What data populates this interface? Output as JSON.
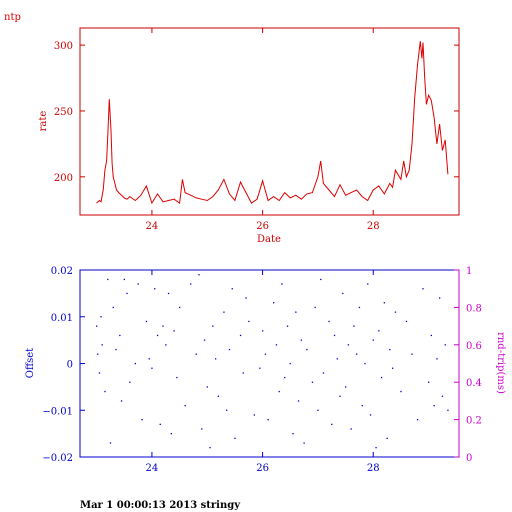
{
  "page_title": "ntp",
  "footer_text": "Mar  1 00:00:13 2013 stringy",
  "colors": {
    "rate": "#dd0000",
    "offset": "#0000cc",
    "rtt": "#cc00cc",
    "axes_top": "#cc0000",
    "axes_bottom": "#0000cc"
  },
  "chart_data": [
    {
      "type": "line",
      "title": "",
      "xlabel": "Date",
      "ylabel": "rate",
      "xlim": [
        22.7,
        29.55
      ],
      "ylim": [
        171,
        313
      ],
      "x_ticks": [
        24,
        26,
        28
      ],
      "x_tick_labels": [
        "24",
        "26",
        "28"
      ],
      "y_ticks": [
        200,
        250,
        300
      ],
      "y_tick_labels": [
        "200",
        "250",
        "300"
      ],
      "grid": false,
      "series": [
        {
          "x": [
            23.0,
            23.05,
            23.08,
            23.12,
            23.15,
            23.18,
            23.2,
            23.23,
            23.26,
            23.28,
            23.3,
            23.33,
            23.36,
            23.4,
            23.45,
            23.5,
            23.55,
            23.6,
            23.7,
            23.8,
            23.9,
            24.0,
            24.1,
            24.2,
            24.3,
            24.4,
            24.5,
            24.55,
            24.6,
            24.7,
            24.8,
            24.9,
            25.0,
            25.1,
            25.2,
            25.3,
            25.4,
            25.5,
            25.6,
            25.7,
            25.8,
            25.9,
            26.0,
            26.1,
            26.2,
            26.3,
            26.4,
            26.5,
            26.6,
            26.7,
            26.8,
            26.9,
            27.0,
            27.05,
            27.1,
            27.2,
            27.3,
            27.4,
            27.5,
            27.6,
            27.7,
            27.8,
            27.9,
            28.0,
            28.1,
            28.2,
            28.3,
            28.35,
            28.4,
            28.5,
            28.55,
            28.6,
            28.65,
            28.7,
            28.75,
            28.8,
            28.85,
            28.88,
            28.9,
            28.93,
            28.96,
            29.0,
            29.05,
            29.1,
            29.15,
            29.2,
            29.25,
            29.3,
            29.35
          ],
          "y": [
            180,
            182,
            181,
            190,
            205,
            212,
            230,
            259,
            235,
            210,
            200,
            195,
            190,
            188,
            186,
            184,
            183,
            185,
            182,
            186,
            193,
            180,
            187,
            181,
            182,
            183,
            180,
            198,
            188,
            186,
            184,
            183,
            182,
            185,
            190,
            198,
            187,
            182,
            196,
            188,
            180,
            183,
            197,
            182,
            185,
            182,
            188,
            184,
            186,
            183,
            187,
            188,
            200,
            212,
            195,
            190,
            185,
            194,
            186,
            188,
            190,
            185,
            182,
            190,
            193,
            187,
            195,
            192,
            205,
            198,
            212,
            200,
            205,
            225,
            260,
            285,
            303,
            290,
            302,
            275,
            255,
            262,
            258,
            245,
            225,
            240,
            220,
            228,
            202
          ]
        }
      ]
    },
    {
      "type": "scatter",
      "title": "",
      "xlabel": "",
      "ylabel": "Offset",
      "y2label": "rnd-trip(ms)",
      "xlim": [
        22.7,
        29.55
      ],
      "ylim": [
        -0.02,
        0.02
      ],
      "y2lim": [
        0,
        1
      ],
      "x_ticks": [
        24,
        26,
        28
      ],
      "x_tick_labels": [
        "24",
        "26",
        "28"
      ],
      "y_ticks": [
        0.02,
        0.01,
        0,
        -0.01,
        -0.02
      ],
      "y_tick_labels": [
        "0.02",
        "0.01",
        "0",
        "−0.01",
        "−0.02"
      ],
      "y2_ticks": [
        0,
        0.2,
        0.4,
        0.6,
        0.8,
        1
      ],
      "y2_tick_labels": [
        "0",
        "0.2",
        "0.4",
        "0.6",
        "0.8",
        "1"
      ],
      "grid": false,
      "series": [
        {
          "x": [
            23.0,
            23.02,
            23.05,
            23.08,
            23.1,
            23.15,
            23.2,
            23.25,
            23.3,
            23.35,
            23.42,
            23.45,
            23.5,
            23.55,
            23.6,
            23.7,
            23.75,
            23.82,
            23.9,
            23.95,
            24.0,
            24.05,
            24.1,
            24.15,
            24.2,
            24.25,
            24.3,
            24.35,
            24.4,
            24.45,
            24.5,
            24.6,
            24.7,
            24.8,
            24.85,
            24.9,
            24.95,
            25.0,
            25.05,
            25.1,
            25.15,
            25.2,
            25.3,
            25.35,
            25.4,
            25.45,
            25.5,
            25.6,
            25.65,
            25.7,
            25.75,
            25.85,
            25.95,
            26.0,
            26.05,
            26.1,
            26.2,
            26.25,
            26.3,
            26.35,
            26.4,
            26.45,
            26.5,
            26.55,
            26.6,
            26.65,
            26.7,
            26.75,
            26.8,
            26.9,
            26.95,
            27.0,
            27.05,
            27.1,
            27.2,
            27.25,
            27.3,
            27.35,
            27.4,
            27.45,
            27.5,
            27.55,
            27.6,
            27.65,
            27.7,
            27.75,
            27.8,
            27.85,
            27.9,
            27.95,
            28.0,
            28.05,
            28.1,
            28.15,
            28.2,
            28.25,
            28.3,
            28.35,
            28.4,
            28.5,
            28.6,
            28.7,
            28.8,
            28.9,
            29.0,
            29.05,
            29.1,
            29.15,
            29.2,
            29.25,
            29.3,
            29.35
          ],
          "y": [
            0.008,
            0.002,
            -0.002,
            0.01,
            0.004,
            -0.006,
            0.018,
            -0.017,
            0.012,
            0.003,
            0.006,
            -0.008,
            0.018,
            0.015,
            -0.004,
            0.0,
            0.017,
            -0.012,
            0.009,
            0.001,
            -0.001,
            0.016,
            0.006,
            -0.013,
            0.008,
            0.004,
            0.015,
            -0.015,
            0.007,
            -0.003,
            0.012,
            -0.009,
            0.017,
            0.002,
            0.019,
            -0.014,
            0.005,
            -0.005,
            -0.018,
            0.008,
            0.001,
            -0.007,
            0.011,
            -0.01,
            0.003,
            0.016,
            -0.016,
            0.006,
            -0.002,
            0.014,
            0.009,
            -0.011,
            -0.001,
            0.007,
            0.002,
            -0.012,
            0.013,
            0.004,
            -0.006,
            0.017,
            -0.003,
            0.008,
            0.0,
            -0.015,
            0.011,
            -0.008,
            0.005,
            -0.017,
            0.003,
            -0.004,
            0.012,
            -0.01,
            0.018,
            -0.002,
            0.009,
            -0.013,
            0.006,
            0.001,
            -0.007,
            0.015,
            -0.005,
            0.004,
            -0.014,
            0.008,
            0.002,
            0.012,
            -0.009,
            0.0,
            0.017,
            -0.011,
            0.005,
            -0.018,
            0.007,
            -0.003,
            0.013,
            -0.016,
            0.003,
            -0.001,
            0.011,
            -0.006,
            0.009,
            0.002,
            -0.012,
            0.016,
            -0.004,
            0.006,
            -0.009,
            0.001,
            0.014,
            -0.007,
            0.004,
            -0.01
          ]
        }
      ]
    }
  ]
}
